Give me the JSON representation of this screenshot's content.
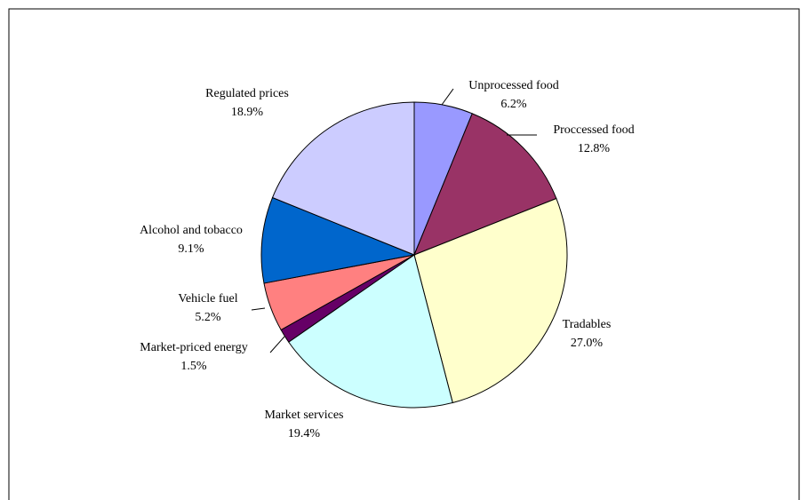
{
  "chart_data": {
    "type": "pie",
    "categories": [
      "Unprocessed food",
      "Proccessed food",
      "Tradables",
      "Market services",
      "Market-priced energy",
      "Vehicle fuel",
      "Alcohol and tobacco",
      "Regulated prices"
    ],
    "values": [
      6.2,
      12.8,
      27.0,
      19.4,
      1.5,
      5.2,
      9.1,
      18.9
    ],
    "value_labels": [
      "6.2%",
      "12.8%",
      "27.0%",
      "19.4%",
      "1.5%",
      "5.2%",
      "9.1%",
      "18.9%"
    ],
    "colors": [
      "#9999ff",
      "#993366",
      "#ffffcc",
      "#ccffff",
      "#660066",
      "#ff8080",
      "#0066cc",
      "#ccccff"
    ]
  }
}
